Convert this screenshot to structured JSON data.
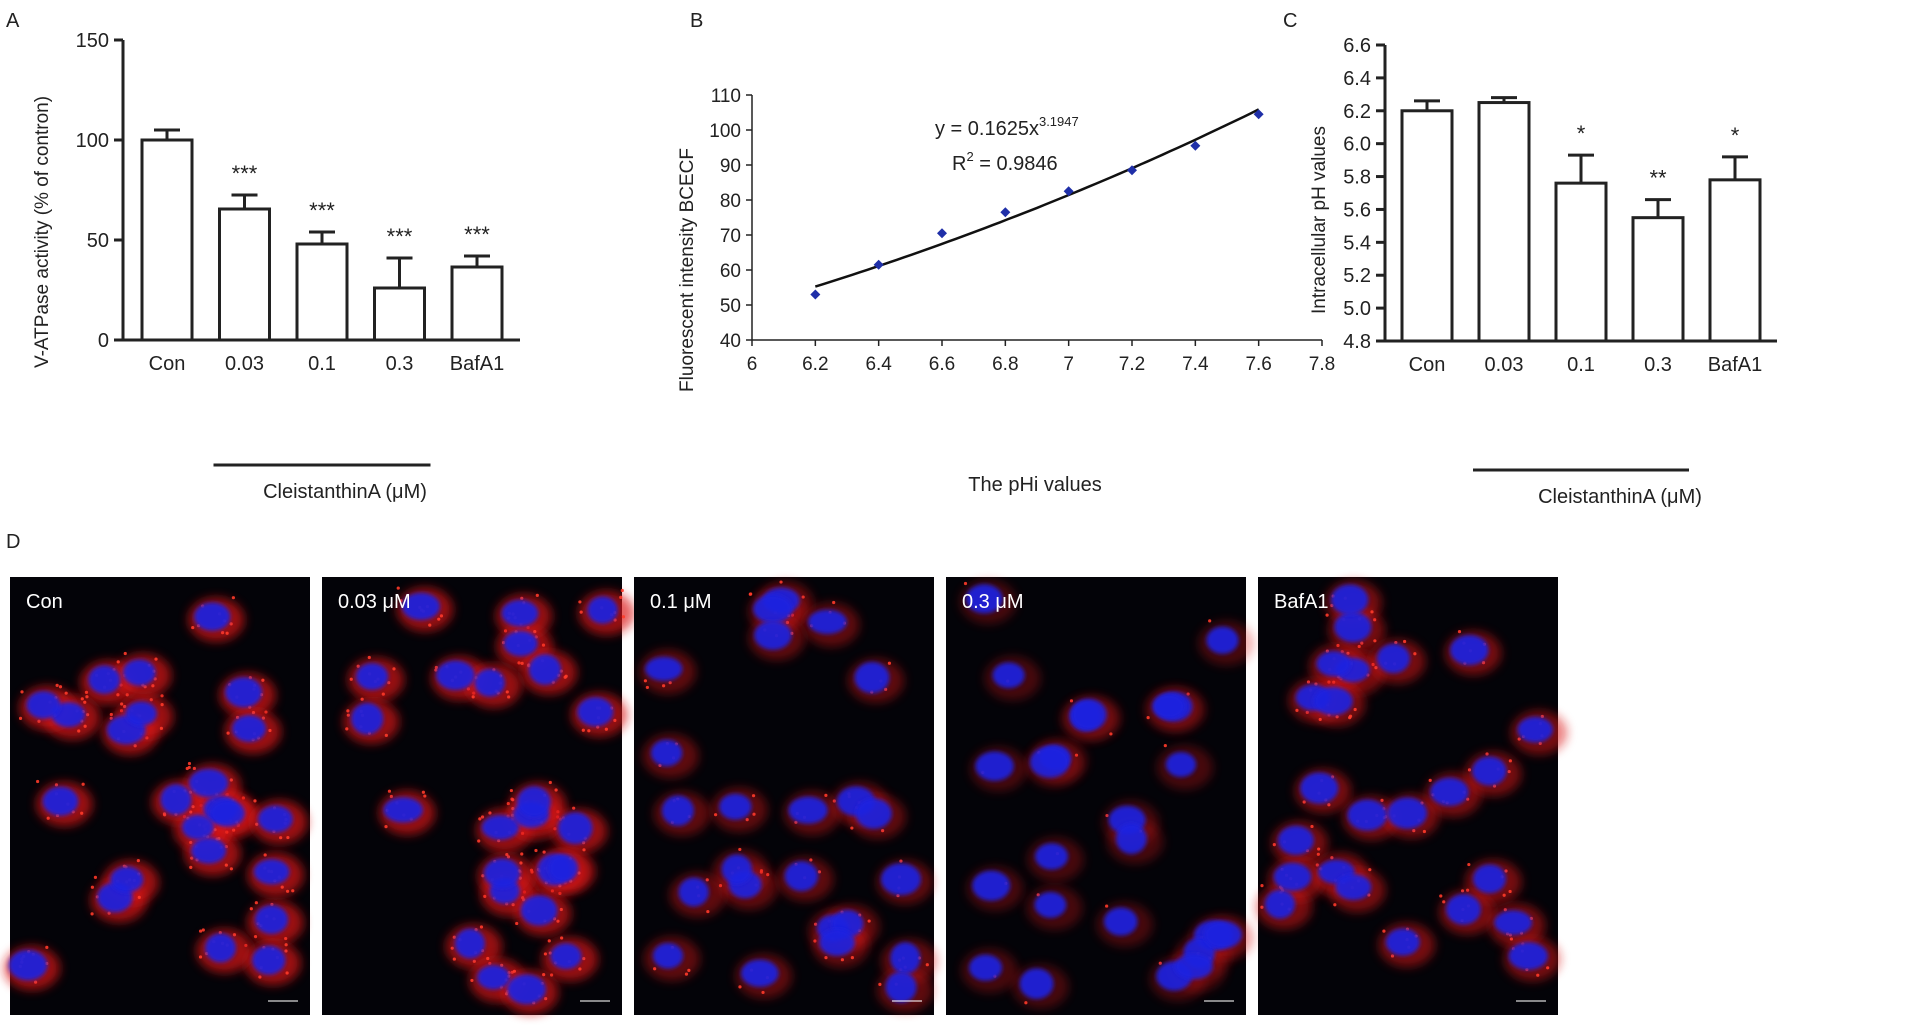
{
  "panel_letters": {
    "a": "A",
    "b": "B",
    "c": "C",
    "d": "D"
  },
  "colors": {
    "axis": "#222222",
    "micro_bg": "#030308",
    "nucleus": "#1a22e0",
    "lysosome": "#dc1414",
    "fit_line": "#111111",
    "points": "#1f2fa8"
  },
  "chart_data": [
    {
      "panel": "A",
      "type": "bar",
      "ylabel": "V-ATPase activity (% of contron)",
      "ylim": [
        0,
        150
      ],
      "y_ticks": [
        0,
        50,
        100,
        150
      ],
      "categories": [
        "Con",
        "0.03",
        "0.1",
        "0.3",
        "BafA1"
      ],
      "values": [
        100,
        65.5,
        48,
        26,
        36.5
      ],
      "errors": [
        5,
        7,
        6,
        15,
        5.5
      ],
      "significance": [
        "",
        "***",
        "***",
        "***",
        "***"
      ],
      "group_label": "CleistanthinA (μM)"
    },
    {
      "panel": "B",
      "type": "scatter",
      "xlabel": "The pHi values",
      "ylabel": "Fluorescent intensity BCECF",
      "xlim": [
        6,
        7.8
      ],
      "x_ticks": [
        "6",
        "6.2",
        "6.4",
        "6.6",
        "6.8",
        "7",
        "7.2",
        "7.4",
        "7.6",
        "7.8"
      ],
      "ylim": [
        40,
        110
      ],
      "y_ticks": [
        40,
        50,
        60,
        70,
        80,
        90,
        100,
        110
      ],
      "points": [
        {
          "x": 6.2,
          "y": 53
        },
        {
          "x": 6.4,
          "y": 61.5
        },
        {
          "x": 6.6,
          "y": 70.5
        },
        {
          "x": 6.8,
          "y": 76.5
        },
        {
          "x": 7.0,
          "y": 82.5
        },
        {
          "x": 7.2,
          "y": 88.5
        },
        {
          "x": 7.4,
          "y": 95.5
        },
        {
          "x": 7.6,
          "y": 104.5
        }
      ],
      "fit": {
        "a": 0.1625,
        "b": 3.1947
      },
      "equation_lead": "y = 0.1625x",
      "equation_exp": "3.1947",
      "r2_lead": "R",
      "r2_exp": "2",
      "r2_value": " = 0.9846"
    },
    {
      "panel": "C",
      "type": "bar",
      "ylabel": "Intracellular pH values",
      "ylim": [
        4.8,
        6.6
      ],
      "y_ticks": [
        "4.8",
        "5.0",
        "5.2",
        "5.4",
        "5.6",
        "5.8",
        "6.0",
        "6.2",
        "6.4",
        "6.6"
      ],
      "categories": [
        "Con",
        "0.03",
        "0.1",
        "0.3",
        "BafA1"
      ],
      "values": [
        6.2,
        6.25,
        5.76,
        5.55,
        5.78
      ],
      "errors": [
        0.06,
        0.03,
        0.17,
        0.11,
        0.14
      ],
      "significance": [
        "",
        "",
        "*",
        "**",
        "*"
      ],
      "group_label": "CleistanthinA (μM)"
    }
  ],
  "micrographs": {
    "labels": [
      "Con",
      "0.03 μM",
      "0.1 μM",
      "0.3 μM",
      "BafA1"
    ],
    "red_intensity": [
      0.9,
      0.85,
      0.35,
      0.12,
      0.55
    ]
  }
}
